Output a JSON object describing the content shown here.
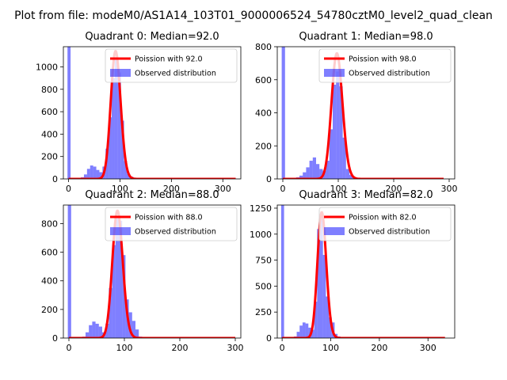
{
  "figure_title": "Plot from file: modeM0/AS1A14_103T01_9000006524_54780cztM0_level2_quad_clean",
  "chart_data": [
    {
      "type": "bar",
      "title": "Quadrant 0: Median=92.0",
      "median": 92.0,
      "xlim": [
        -10,
        335
      ],
      "ylim": [
        0,
        1180
      ],
      "xticks": [
        0,
        100,
        200,
        300
      ],
      "yticks": [
        0,
        200,
        400,
        600,
        800,
        1000
      ],
      "hist": {
        "name": "Observed distribution",
        "bin_width": 6,
        "x": [
          -2,
          24,
          30,
          36,
          42,
          48,
          54,
          60,
          66,
          72,
          78,
          84,
          90,
          96,
          102,
          108,
          114,
          120,
          126,
          132,
          150
        ],
        "values": [
          1180,
          15,
          40,
          90,
          120,
          110,
          80,
          60,
          110,
          270,
          550,
          900,
          1080,
          950,
          520,
          160,
          45,
          20,
          10,
          5,
          3
        ]
      },
      "curve": {
        "name": "Poission with 92.0",
        "lambda": 92.0,
        "scale": 1140,
        "x_range": [
          0,
          325
        ]
      },
      "legend": [
        "Poission with 92.0",
        "Observed distribution"
      ]
    },
    {
      "type": "bar",
      "title": "Quadrant 1: Median=98.0",
      "median": 98.0,
      "xlim": [
        -10,
        310
      ],
      "ylim": [
        0,
        800
      ],
      "xticks": [
        0,
        100,
        200,
        300
      ],
      "yticks": [
        0,
        200,
        400,
        600,
        800
      ],
      "hist": {
        "name": "Observed distribution",
        "bin_width": 6,
        "x": [
          -2,
          24,
          30,
          36,
          42,
          48,
          54,
          60,
          66,
          72,
          78,
          84,
          90,
          96,
          102,
          108,
          114,
          120,
          126,
          132,
          138
        ],
        "values": [
          800,
          10,
          20,
          40,
          70,
          110,
          130,
          90,
          60,
          50,
          110,
          300,
          570,
          650,
          560,
          250,
          60,
          25,
          10,
          5,
          3
        ]
      },
      "curve": {
        "name": "Poission with 98.0",
        "lambda": 98.0,
        "scale": 760,
        "x_range": [
          0,
          290
        ]
      },
      "legend": [
        "Poission with 98.0",
        "Observed distribution"
      ]
    },
    {
      "type": "bar",
      "title": "Quadrant 2: Median=88.0",
      "median": 88.0,
      "xlim": [
        -10,
        310
      ],
      "ylim": [
        0,
        930
      ],
      "xticks": [
        0,
        100,
        200,
        300
      ],
      "yticks": [
        0,
        200,
        400,
        600,
        800
      ],
      "hist": {
        "name": "Observed distribution",
        "bin_width": 6,
        "x": [
          -2,
          24,
          30,
          36,
          42,
          48,
          54,
          60,
          66,
          72,
          78,
          84,
          90,
          96,
          102,
          108,
          114,
          120,
          126
        ],
        "values": [
          930,
          10,
          40,
          90,
          115,
          100,
          80,
          40,
          100,
          350,
          650,
          850,
          820,
          580,
          270,
          180,
          120,
          60,
          10
        ]
      },
      "curve": {
        "name": "Poission with 88.0",
        "lambda": 88.0,
        "scale": 890,
        "x_range": [
          0,
          300
        ]
      },
      "legend": [
        "Poission with 88.0",
        "Observed distribution"
      ]
    },
    {
      "type": "bar",
      "title": "Quadrant 3: Median=82.0",
      "median": 82.0,
      "xlim": [
        -10,
        355
      ],
      "ylim": [
        0,
        1280
      ],
      "xticks": [
        0,
        100,
        200,
        300
      ],
      "yticks": [
        0,
        250,
        500,
        750,
        1000,
        1250
      ],
      "hist": {
        "name": "Observed distribution",
        "bin_width": 6,
        "x": [
          -2,
          24,
          30,
          36,
          42,
          48,
          54,
          60,
          66,
          72,
          78,
          84,
          90,
          96,
          102,
          108,
          114,
          120
        ],
        "values": [
          1280,
          15,
          60,
          120,
          150,
          140,
          100,
          80,
          350,
          1050,
          1200,
          800,
          400,
          200,
          150,
          40,
          15,
          5
        ]
      },
      "curve": {
        "name": "Poission with 82.0",
        "lambda": 82.0,
        "scale": 1210,
        "x_range": [
          0,
          335
        ]
      },
      "legend": [
        "Poission with 82.0",
        "Observed distribution"
      ]
    }
  ]
}
